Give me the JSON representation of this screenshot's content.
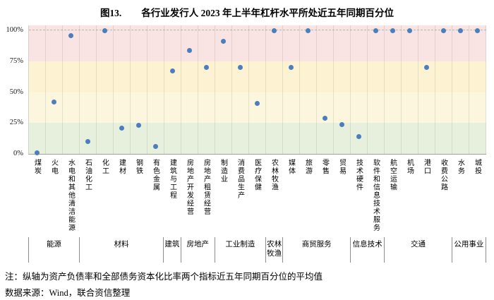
{
  "title": {
    "prefix": "图13.",
    "text": "各行业发行人 2023 年上半年杠杆水平所处近五年同期百分位"
  },
  "chart_data": {
    "type": "scatter",
    "title": "图13. 各行业发行人 2023 年上半年杠杆水平所处近五年同期百分位",
    "xlabel": "",
    "ylabel": "",
    "ylim": [
      0,
      104
    ],
    "grid": "vertical-light",
    "point_color": "#4a7ebc",
    "yticks": [
      {
        "label": "0%",
        "value": 0
      },
      {
        "label": "25%",
        "value": 25
      },
      {
        "label": "50%",
        "value": 50
      },
      {
        "label": "75%",
        "value": 75
      },
      {
        "label": "100%",
        "value": 100
      }
    ],
    "bands": [
      {
        "range": [
          0,
          25
        ],
        "color": "#e6f0dc"
      },
      {
        "range": [
          25,
          50
        ],
        "color": "#fbf6dd"
      },
      {
        "range": [
          50,
          75
        ],
        "color": "#fdf2d1"
      },
      {
        "range": [
          75,
          104
        ],
        "color": "#f9e3e3"
      }
    ],
    "categories": [
      "煤炭",
      "火电",
      "水电和其他清洁能源",
      "石油化工",
      "化工",
      "建材",
      "钢铁",
      "有色金属",
      "建筑与工程",
      "房地产开发经营",
      "房地产租赁经营",
      "制造业",
      "消费品生产",
      "医疗保健",
      "农林牧渔",
      "媒体",
      "旅游",
      "零售",
      "贸易",
      "技术硬件",
      "软件和信息技术服务",
      "航空运输",
      "机场",
      "港口",
      "收费公路",
      "水务",
      "城投"
    ],
    "values": [
      0,
      42,
      96,
      10,
      100,
      21,
      23,
      6,
      67,
      84,
      70,
      91,
      70,
      41,
      100,
      70,
      100,
      29,
      24,
      14,
      100,
      100,
      100,
      70,
      100,
      100,
      100
    ],
    "groups": [
      {
        "label": "能源",
        "span": 3
      },
      {
        "label": "材料",
        "span": 5
      },
      {
        "label": "建筑",
        "span": 1
      },
      {
        "label": "房地产",
        "span": 2
      },
      {
        "label": "工业制造",
        "span": 3
      },
      {
        "label": "农林牧渔",
        "span": 1
      },
      {
        "label": "商贸服务",
        "span": 4
      },
      {
        "label": "信息技术",
        "span": 2
      },
      {
        "label": "交通",
        "span": 4
      },
      {
        "label": "公用事业",
        "span": 2
      }
    ]
  },
  "notes": {
    "line1": "注：纵轴为资产负债率和全部债务资本化比率两个指标近五年同期百分位的平均值",
    "line2": "数据来源：Wind，联合资信整理"
  }
}
